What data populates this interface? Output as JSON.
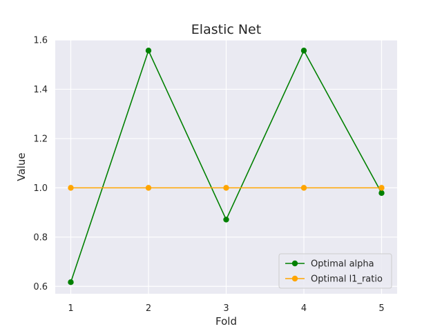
{
  "chart_data": {
    "type": "line",
    "title": "Elastic Net",
    "xlabel": "Fold",
    "ylabel": "Value",
    "x": [
      1,
      2,
      3,
      4,
      5
    ],
    "xlim": [
      0.8,
      5.2
    ],
    "ylim": [
      0.57,
      1.6
    ],
    "yticks": [
      0.6,
      0.8,
      1.0,
      1.2,
      1.4,
      1.6
    ],
    "ytick_labels": [
      "0.6",
      "0.8",
      "1.0",
      "1.2",
      "1.4",
      "1.6"
    ],
    "xticks": [
      1,
      2,
      3,
      4,
      5
    ],
    "xtick_labels": [
      "1",
      "2",
      "3",
      "4",
      "5"
    ],
    "grid": true,
    "legend_position": "lower-right",
    "background_color": "#eaeaf2",
    "series": [
      {
        "name": "Optimal alpha",
        "color": "#008000",
        "values": [
          0.617,
          1.557,
          0.871,
          1.557,
          0.979
        ]
      },
      {
        "name": "Optimal l1_ratio",
        "color": "#ffa500",
        "values": [
          1.0,
          1.0,
          1.0,
          1.0,
          1.0
        ]
      }
    ]
  }
}
